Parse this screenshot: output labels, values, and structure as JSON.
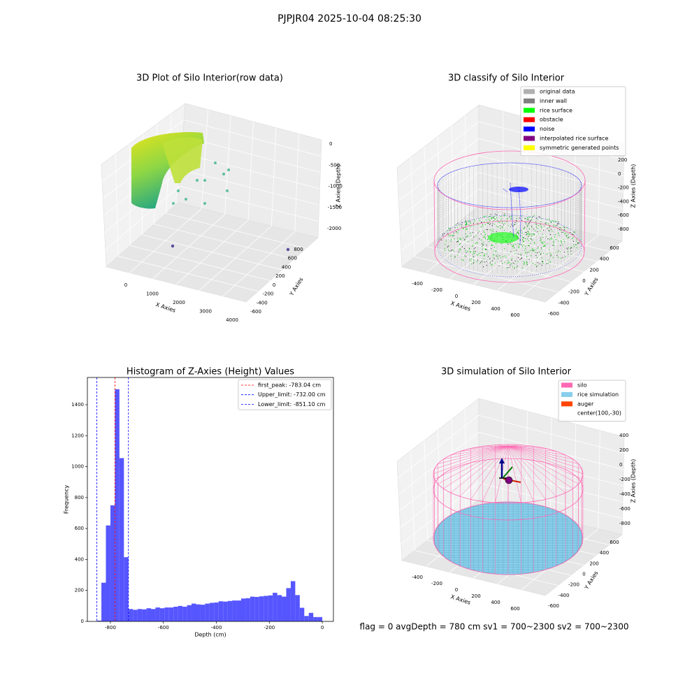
{
  "suptitle": "PJPJR04 2025-10-04 08:25:30",
  "status_text": "flag = 0     avgDepth = 780 cm  sv1 = 700~2300  sv2 = 700~2300",
  "chart_data": [
    {
      "type": "scatter3d",
      "title": "3D Plot of Silo Interior(row data)",
      "xlabel": "X Axies",
      "ylabel": "Y Axies",
      "zlabel": "Z Axies (Depth)",
      "xticks": [
        0,
        1000,
        2000,
        3000,
        4000
      ],
      "yticks": [
        -600,
        -400,
        -200,
        0,
        200,
        400,
        600,
        800
      ],
      "zticks": [
        -2000,
        -1500,
        -1000,
        -500,
        0
      ]
    },
    {
      "type": "scatter3d",
      "title": "3D classify of Silo Interior",
      "xlabel": "X Axies",
      "ylabel": "Y Axies",
      "zlabel": "Z Axies (Depth)",
      "xticks": [
        -400,
        -200,
        0,
        200,
        400,
        600
      ],
      "yticks": [
        -600,
        -400,
        -200,
        0,
        200,
        400,
        600
      ],
      "zticks": [
        -800,
        -600,
        -400,
        -200,
        0,
        200
      ],
      "legend": [
        {
          "name": "original data",
          "color": "#b0b0b0"
        },
        {
          "name": "inner wall",
          "color": "#808080"
        },
        {
          "name": "rice surface",
          "color": "#00ff00"
        },
        {
          "name": "obstacle",
          "color": "#ff0000"
        },
        {
          "name": "noise",
          "color": "#0000ff"
        },
        {
          "name": "interpolated rice surface",
          "color": "#800080"
        },
        {
          "name": "symmetric generated points",
          "color": "#ffff00"
        }
      ]
    },
    {
      "type": "histogram",
      "title": "Histogram of Z-Axies (Height) Values",
      "xlabel": "Depth (cm)",
      "ylabel": "Frequency",
      "color": "#4d4dff",
      "bins": [
        -851.1,
        -834.08,
        -817.06,
        -800.03,
        -783.01,
        -765.99,
        -748.97,
        -731.95,
        -714.92,
        -697.9,
        -680.88,
        -663.86,
        -646.84,
        -629.81,
        -612.79,
        -595.77,
        -578.75,
        -561.73,
        -544.7,
        -527.68,
        -510.66,
        -493.64,
        -476.62,
        -459.59,
        -442.57,
        -425.55,
        -408.53,
        -391.51,
        -374.48,
        -357.46,
        -340.44,
        -323.42,
        -306.4,
        -289.37,
        -272.35,
        -255.33,
        -238.31,
        -221.29,
        -204.26,
        -187.24,
        -170.22,
        -153.2,
        -136.18,
        -119.15,
        -102.13,
        -85.11,
        -68.09,
        -51.07,
        -34.04,
        -17.02,
        0
      ],
      "counts": [
        5,
        250,
        620,
        750,
        1500,
        1055,
        415,
        80,
        75,
        80,
        78,
        85,
        80,
        90,
        85,
        90,
        90,
        95,
        100,
        95,
        105,
        115,
        110,
        108,
        115,
        120,
        122,
        130,
        128,
        132,
        135,
        135,
        148,
        150,
        160,
        158,
        162,
        165,
        168,
        185,
        170,
        160,
        215,
        260,
        170,
        88,
        35,
        55,
        28,
        28
      ],
      "xlim": [
        -887,
        42
      ],
      "ylim": [
        0,
        1576
      ],
      "xticks": [
        -800,
        -600,
        -400,
        -200,
        0
      ],
      "yticks": [
        0,
        200,
        400,
        600,
        800,
        1000,
        1200,
        1400
      ],
      "lines": [
        {
          "value": -783.04,
          "label": "first_peak: -783.04 cm",
          "color": "#ff0000"
        },
        {
          "value": -732.0,
          "label": "Upper_limit: -732.00 cm",
          "color": "#0000ff"
        },
        {
          "value": -851.1,
          "label": "Lower_limit: -851.10 cm",
          "color": "#0000ff"
        }
      ]
    },
    {
      "type": "surface3d",
      "title": "3D simulation of Silo Interior",
      "xlabel": "X Axies",
      "ylabel": "Y Axies",
      "zlabel": "Z Axies (Depth)",
      "xticks": [
        -400,
        -200,
        0,
        200,
        400,
        600
      ],
      "yticks": [
        -600,
        -400,
        -200,
        0,
        200,
        400,
        600
      ],
      "zticks": [
        -800,
        -600,
        -400,
        -200,
        0,
        200,
        400
      ],
      "legend": [
        {
          "name": "silo",
          "color": "#ff69b4"
        },
        {
          "name": "rice simulation",
          "color": "#87ceeb"
        },
        {
          "name": "auger",
          "color": "#ff4500"
        },
        {
          "name": "center(100,-30)"
        }
      ]
    }
  ]
}
